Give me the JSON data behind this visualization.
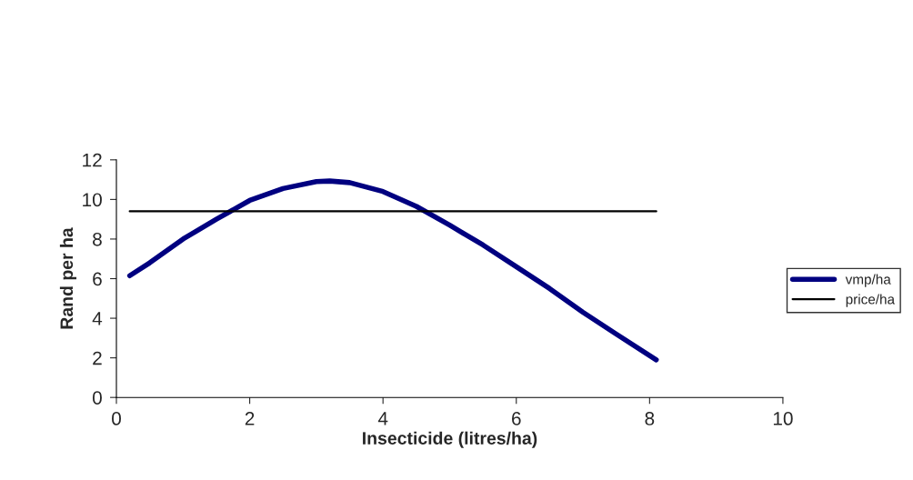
{
  "chart_data": {
    "type": "line",
    "xlabel": "Insecticide (litres/ha)",
    "ylabel": "Rand per ha",
    "xlim": [
      0,
      10
    ],
    "xticks": [
      0,
      2,
      4,
      6,
      8,
      10
    ],
    "ylim": [
      0,
      12
    ],
    "yticks": [
      0,
      2,
      4,
      6,
      8,
      10,
      12
    ],
    "grid": false,
    "legend": "right",
    "marker": "none",
    "series": [
      {
        "name": "vmp/ha",
        "color": "#000080",
        "x": [
          0.2,
          0.5,
          1,
          1.5,
          2,
          2.5,
          3,
          3.2,
          3.5,
          4,
          4.5,
          5,
          5.5,
          6,
          6.5,
          7,
          7.5,
          8.1
        ],
        "values": [
          6.15,
          6.8,
          8.0,
          9.0,
          9.95,
          10.55,
          10.9,
          10.93,
          10.85,
          10.4,
          9.65,
          8.7,
          7.7,
          6.6,
          5.5,
          4.3,
          3.2,
          1.9
        ]
      },
      {
        "name": "price/ha",
        "color": "#000000",
        "x": [
          0.2,
          8.1
        ],
        "values": [
          9.4,
          9.4
        ]
      }
    ]
  }
}
